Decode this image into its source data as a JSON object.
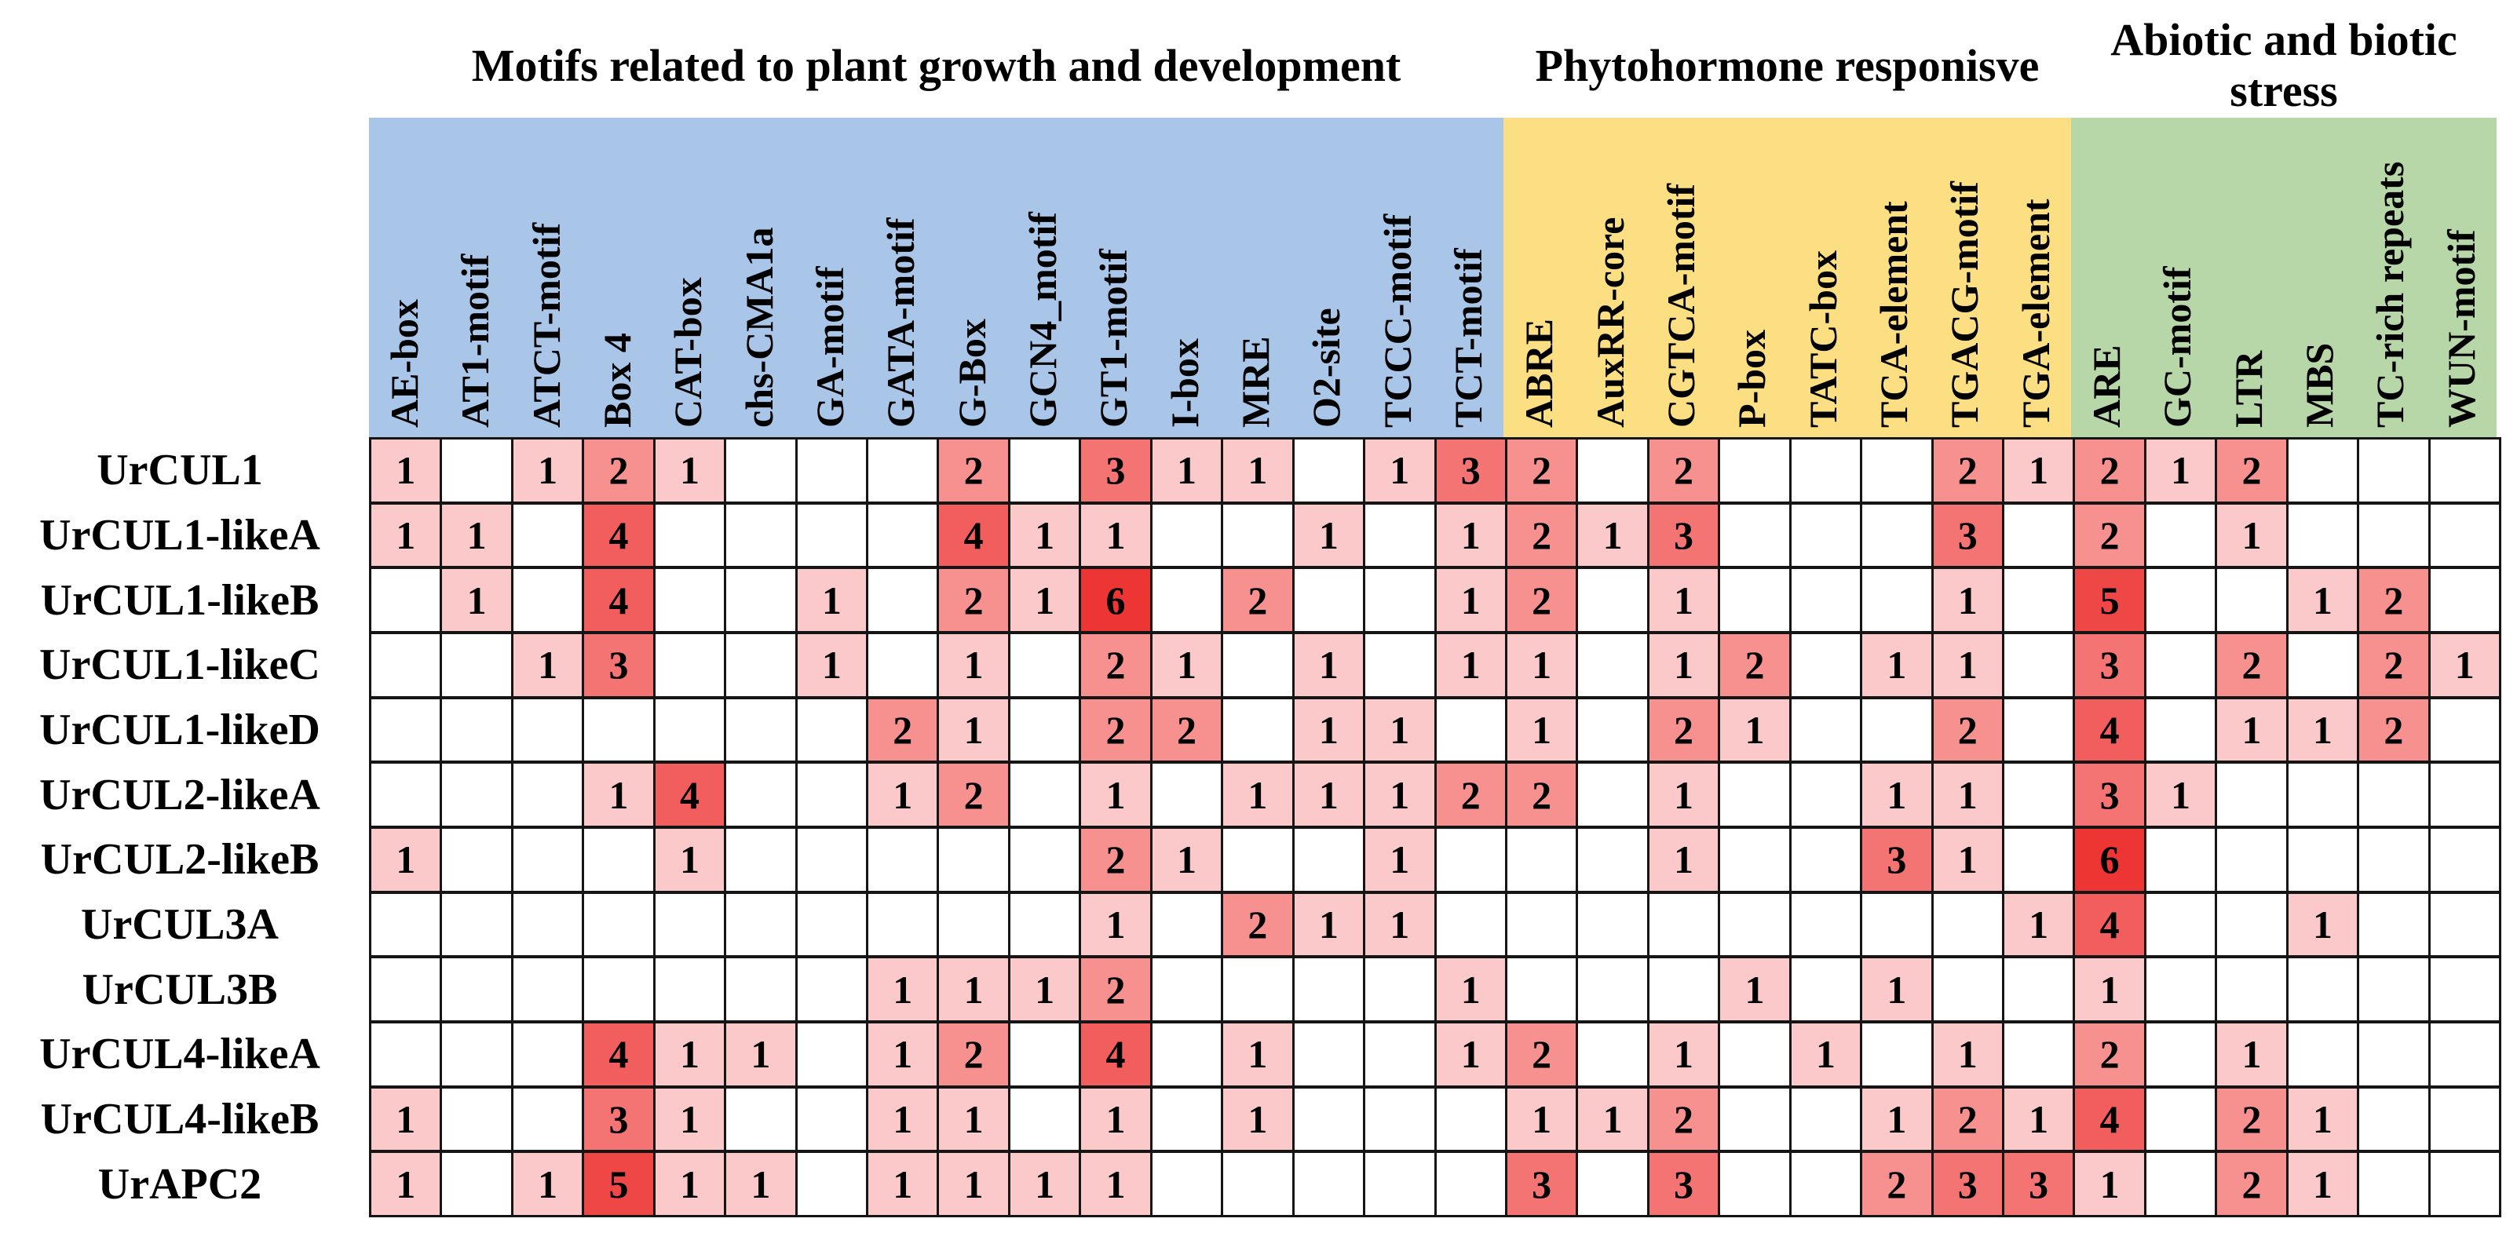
{
  "chart_data": {
    "type": "heatmap",
    "title": "",
    "column_groups": [
      {
        "label": "Motifs related to plant growth and development",
        "color": "#a9c5e8",
        "col_start": 0,
        "col_end": 15
      },
      {
        "label": "Phytohormone responisve",
        "color": "#fbdf82",
        "col_start": 16,
        "col_end": 23
      },
      {
        "label": "Abiotic and biotic stress",
        "color": "#b7d7a9",
        "col_start": 24,
        "col_end": 29
      }
    ],
    "columns": [
      "AE-box",
      "AT1-motif",
      "ATCT-motif",
      "Box 4",
      "CAT-box",
      "chs-CMA1a",
      "GA-motif",
      "GATA-motif",
      "G-Box",
      "GCN4_motif",
      "GT1-motif",
      "I-box",
      "MRE",
      "O2-site",
      "TCCC-motif",
      "TCT-motif",
      "ABRE",
      "AuxRR-core",
      "CGTCA-motif",
      "P-box",
      "TATC-box",
      "TCA-element",
      "TGACG-motif",
      "TGA-element",
      "ARE",
      "GC-motif",
      "LTR",
      "MBS",
      "TC-rich repeats",
      "WUN-motif"
    ],
    "rows": [
      "UrCUL1",
      "UrCUL1-likeA",
      "UrCUL1-likeB",
      "UrCUL1-likeC",
      "UrCUL1-likeD",
      "UrCUL2-likeA",
      "UrCUL2-likeB",
      "UrCUL3A",
      "UrCUL3B",
      "UrCUL4-likeA",
      "UrCUL4-likeB",
      "UrAPC2"
    ],
    "values": [
      [
        1,
        0,
        1,
        2,
        1,
        0,
        0,
        0,
        2,
        0,
        3,
        1,
        1,
        0,
        1,
        3,
        2,
        0,
        2,
        0,
        0,
        0,
        2,
        1,
        2,
        1,
        2,
        0,
        0,
        0
      ],
      [
        1,
        1,
        0,
        4,
        0,
        0,
        0,
        0,
        4,
        1,
        1,
        0,
        0,
        1,
        0,
        1,
        2,
        1,
        3,
        0,
        0,
        0,
        3,
        0,
        2,
        0,
        1,
        0,
        0,
        0
      ],
      [
        0,
        1,
        0,
        4,
        0,
        0,
        1,
        0,
        2,
        1,
        6,
        0,
        2,
        0,
        0,
        1,
        2,
        0,
        1,
        0,
        0,
        0,
        1,
        0,
        5,
        0,
        0,
        1,
        2,
        0
      ],
      [
        0,
        0,
        1,
        3,
        0,
        0,
        1,
        0,
        1,
        0,
        2,
        1,
        0,
        1,
        0,
        1,
        1,
        0,
        1,
        2,
        0,
        1,
        1,
        0,
        3,
        0,
        2,
        0,
        2,
        1
      ],
      [
        0,
        0,
        0,
        0,
        0,
        0,
        0,
        2,
        1,
        0,
        2,
        2,
        0,
        1,
        1,
        0,
        1,
        0,
        2,
        1,
        0,
        0,
        2,
        0,
        4,
        0,
        1,
        1,
        2,
        0
      ],
      [
        0,
        0,
        0,
        1,
        4,
        0,
        0,
        1,
        2,
        0,
        1,
        0,
        1,
        1,
        1,
        2,
        2,
        0,
        1,
        0,
        0,
        1,
        1,
        0,
        3,
        1,
        0,
        0,
        0,
        0
      ],
      [
        1,
        0,
        0,
        0,
        1,
        0,
        0,
        0,
        0,
        0,
        2,
        1,
        0,
        0,
        1,
        0,
        0,
        0,
        1,
        0,
        0,
        3,
        1,
        0,
        6,
        0,
        0,
        0,
        0,
        0
      ],
      [
        0,
        0,
        0,
        0,
        0,
        0,
        0,
        0,
        0,
        0,
        1,
        0,
        2,
        1,
        1,
        0,
        0,
        0,
        0,
        0,
        0,
        0,
        0,
        1,
        4,
        0,
        0,
        1,
        0,
        0
      ],
      [
        0,
        0,
        0,
        0,
        0,
        0,
        0,
        1,
        1,
        1,
        2,
        0,
        0,
        0,
        0,
        1,
        0,
        0,
        0,
        1,
        0,
        1,
        0,
        0,
        1,
        0,
        0,
        0,
        0,
        0
      ],
      [
        0,
        0,
        0,
        4,
        1,
        1,
        0,
        1,
        2,
        0,
        4,
        0,
        1,
        0,
        0,
        1,
        2,
        0,
        1,
        0,
        1,
        0,
        1,
        0,
        2,
        0,
        1,
        0,
        0,
        0
      ],
      [
        1,
        0,
        0,
        3,
        1,
        0,
        0,
        1,
        1,
        0,
        1,
        0,
        1,
        0,
        0,
        0,
        1,
        1,
        2,
        0,
        0,
        1,
        2,
        1,
        4,
        0,
        2,
        1,
        0,
        0
      ],
      [
        1,
        0,
        1,
        5,
        1,
        1,
        0,
        1,
        1,
        1,
        1,
        0,
        0,
        0,
        0,
        0,
        3,
        0,
        3,
        0,
        0,
        2,
        3,
        3,
        1,
        0,
        2,
        1,
        0,
        0
      ]
    ],
    "value_colors": {
      "1": "#fbc9c9",
      "2": "#f69190",
      "3": "#f47473",
      "4": "#f25d5d",
      "5": "#ef4646",
      "6": "#ed3534"
    },
    "empty_color": "#ffffff",
    "grid_line_color": "#151515",
    "legend": "none",
    "layout_hints": "column labels rotated 90deg bottom-anchored; row labels at left; counts drawn inside shaded cells"
  }
}
